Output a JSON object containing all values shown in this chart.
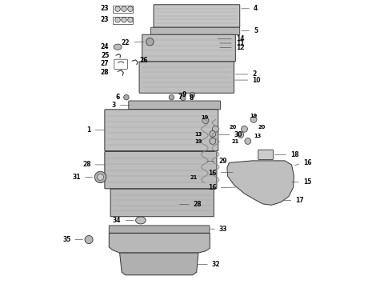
{
  "background_color": "#ffffff",
  "ec": "#333333",
  "label_fontsize": 5.5,
  "parts_color": "#c8c8c8"
}
